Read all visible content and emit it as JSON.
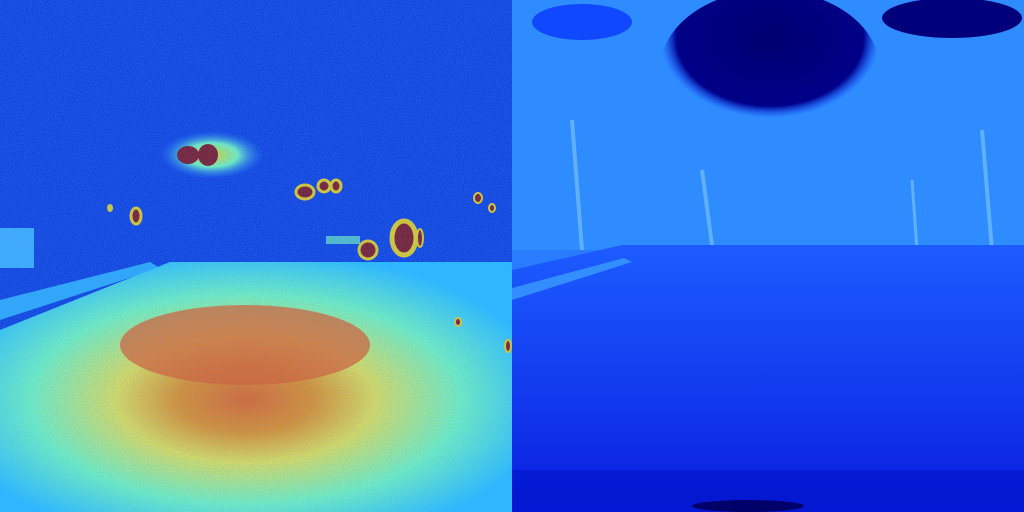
{
  "panels": [
    {
      "name": "left-panel",
      "colormap": "jet",
      "description_colors": {
        "background": "#0a2fd6",
        "hot": "#8b0000",
        "warm": "#ff8c00",
        "mid": "#ffff3c",
        "cool": "#39d7ff"
      }
    },
    {
      "name": "right-panel",
      "colormap": "jet",
      "description_colors": {
        "background": "#0a1ee8",
        "sky": "#00007a",
        "trees": "#2a8cff",
        "road": "#0a1ee0"
      }
    }
  ]
}
